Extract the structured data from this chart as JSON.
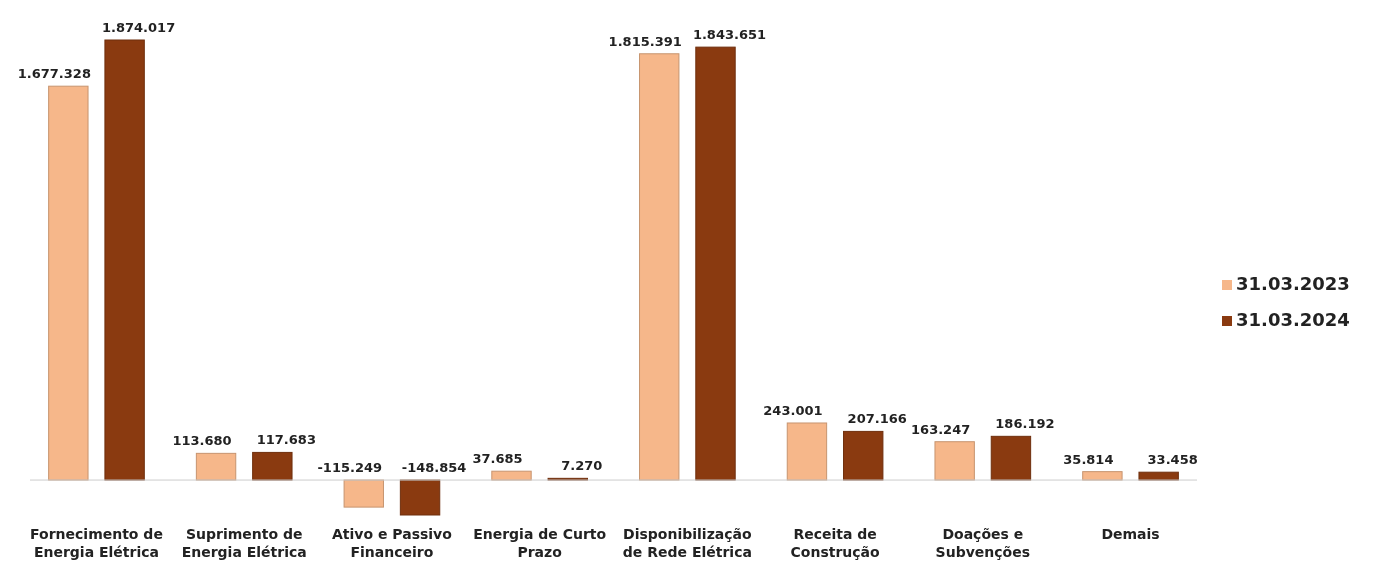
{
  "chart_data": {
    "type": "bar",
    "categories": [
      "Fornecimento de Energia Elétrica",
      "Suprimento de Energia Elétrica",
      "Ativo e Passivo Financeiro",
      "Energia de Curto Prazo",
      "Disponibilização de Rede Elétrica",
      "Receita de Construção",
      "Doações e Subvenções",
      "Demais"
    ],
    "series": [
      {
        "name": "31.03.2023",
        "color": "#f6b78a",
        "values": [
          1677328,
          113680,
          -115249,
          37685,
          1815391,
          243001,
          163247,
          35814
        ],
        "value_labels": [
          "1.677.328",
          "113.680",
          "-115.249",
          "37.685",
          "1.815.391",
          "243.001",
          "163.247",
          "35.814"
        ]
      },
      {
        "name": "31.03.2024",
        "color": "#8a3a10",
        "values": [
          1874017,
          117683,
          -148854,
          7270,
          1843651,
          207166,
          186192,
          33458
        ],
        "value_labels": [
          "1.874.017",
          "117.683",
          "-148.854",
          "7.270",
          "1.843.651",
          "207.166",
          "186.192",
          "33.458"
        ]
      }
    ],
    "legend": "right",
    "grid": false
  }
}
